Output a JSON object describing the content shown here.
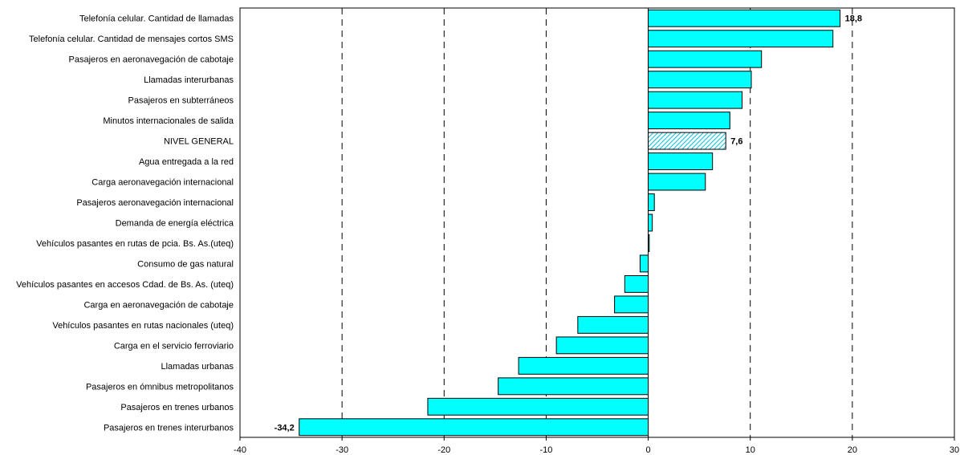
{
  "chart_data": {
    "type": "bar",
    "orientation": "horizontal",
    "categories": [
      "Telefonía celular. Cantidad de llamadas",
      "Telefonía celular. Cantidad de mensajes cortos SMS",
      "Pasajeros en aeronavegación de cabotaje",
      "Llamadas interurbanas",
      "Pasajeros en subterráneos",
      "Minutos internacionales de salida",
      "NIVEL GENERAL",
      "Agua entregada a la red",
      "Carga aeronavegación internacional",
      "Pasajeros aeronavegación internacional",
      "Demanda de energía eléctrica",
      "Vehículos pasantes en rutas de pcia. Bs. As.(uteq)",
      "Consumo de gas natural",
      "Vehículos pasantes en accesos Cdad. de Bs. As. (uteq)",
      "Carga en aeronavegación de cabotaje",
      "Vehículos pasantes en rutas nacionales (uteq)",
      "Carga en el servicio ferroviario",
      "Llamadas urbanas",
      "Pasajeros en ómnibus metropolitanos",
      "Pasajeros en trenes urbanos",
      "Pasajeros en trenes interurbanos"
    ],
    "values": [
      18.8,
      18.1,
      11.1,
      10.1,
      9.2,
      8.0,
      7.6,
      6.3,
      5.6,
      0.6,
      0.4,
      0.1,
      -0.8,
      -2.3,
      -3.3,
      -6.9,
      -9.0,
      -12.7,
      -14.7,
      -21.6,
      -34.2
    ],
    "data_labels": [
      {
        "index": 0,
        "text": "18,8"
      },
      {
        "index": 6,
        "text": "7,6"
      },
      {
        "index": 20,
        "text": "-34,2"
      }
    ],
    "highlight_index": 6,
    "xlim": [
      -40,
      30
    ],
    "xticks": [
      "-40",
      "-30",
      "-20",
      "-10",
      "0",
      "10",
      "20",
      "30"
    ],
    "grid": "vertical-dashed",
    "colors": {
      "bar": "#00FFFF",
      "highlight": "#00FFFF",
      "edge": "#000000"
    },
    "title": "",
    "xlabel": "",
    "ylabel": ""
  }
}
